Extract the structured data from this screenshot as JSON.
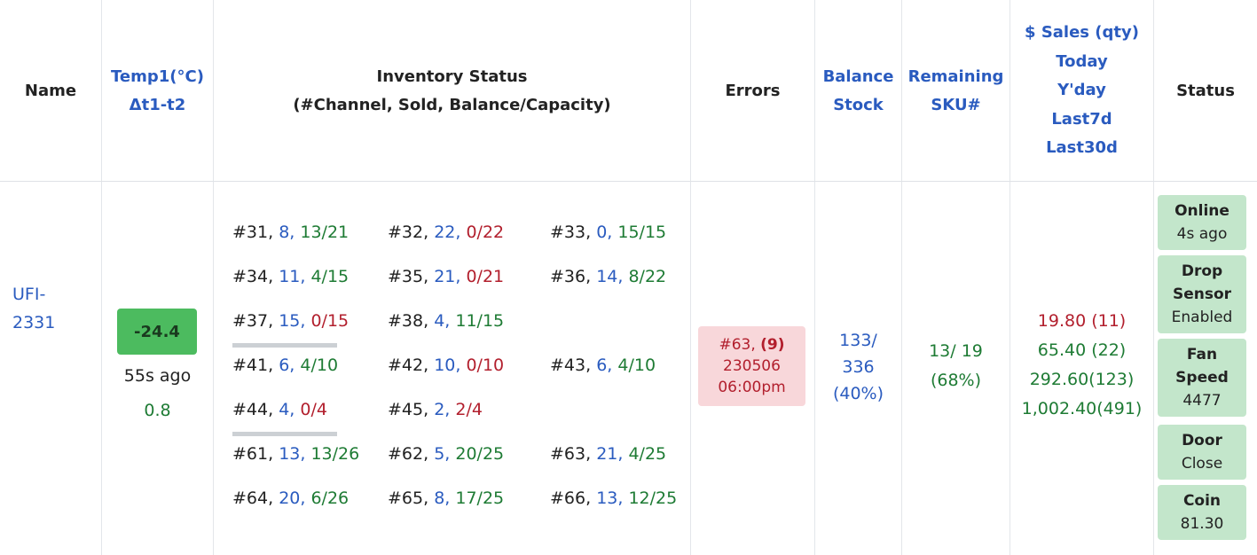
{
  "header": {
    "name": "Name",
    "temp": [
      "Temp1(°C)",
      "Δt1-t2"
    ],
    "inventory": [
      "Inventory Status",
      "(#Channel, Sold, Balance/Capacity)"
    ],
    "errors": "Errors",
    "balance": [
      "Balance",
      "Stock"
    ],
    "remaining": [
      "Remaining",
      "SKU#"
    ],
    "sales": [
      "$ Sales (qty)",
      "Today",
      "Y'day",
      "Last7d",
      "Last30d"
    ],
    "status": "Status"
  },
  "row": {
    "name": "UFI-2331",
    "temp": {
      "value": "-24.4",
      "ago": "55s ago",
      "delta": "0.8"
    },
    "inventory": [
      [
        [
          {
            "channel": "#31,",
            "sold": "8,",
            "balance": "13/21",
            "color": "green"
          },
          {
            "channel": "#32,",
            "sold": "22,",
            "balance": "0/22",
            "color": "red"
          },
          {
            "channel": "#33,",
            "sold": "0,",
            "balance": "15/15",
            "color": "green"
          }
        ],
        [
          {
            "channel": "#34,",
            "sold": "11,",
            "balance": "4/15",
            "color": "green"
          },
          {
            "channel": "#35,",
            "sold": "21,",
            "balance": "0/21",
            "color": "red"
          },
          {
            "channel": "#36,",
            "sold": "14,",
            "balance": "8/22",
            "color": "green"
          }
        ],
        [
          {
            "channel": "#37,",
            "sold": "15,",
            "balance": "0/15",
            "color": "red"
          },
          {
            "channel": "#38,",
            "sold": "4,",
            "balance": "11/15",
            "color": "green"
          }
        ]
      ],
      [
        [
          {
            "channel": "#41,",
            "sold": "6,",
            "balance": "4/10",
            "color": "green"
          },
          {
            "channel": "#42,",
            "sold": "10,",
            "balance": "0/10",
            "color": "red"
          },
          {
            "channel": "#43,",
            "sold": "6,",
            "balance": "4/10",
            "color": "green"
          }
        ],
        [
          {
            "channel": "#44,",
            "sold": "4,",
            "balance": "0/4",
            "color": "red"
          },
          {
            "channel": "#45,",
            "sold": "2,",
            "balance": "2/4",
            "color": "red"
          }
        ]
      ],
      [
        [
          {
            "channel": "#61,",
            "sold": "13,",
            "balance": "13/26",
            "color": "green"
          },
          {
            "channel": "#62,",
            "sold": "5,",
            "balance": "20/25",
            "color": "green"
          },
          {
            "channel": "#63,",
            "sold": "21,",
            "balance": "4/25",
            "color": "green"
          }
        ],
        [
          {
            "channel": "#64,",
            "sold": "20,",
            "balance": "6/26",
            "color": "green"
          },
          {
            "channel": "#65,",
            "sold": "8,",
            "balance": "17/25",
            "color": "green"
          },
          {
            "channel": "#66,",
            "sold": "13,",
            "balance": "12/25",
            "color": "green"
          }
        ]
      ]
    ],
    "errors": {
      "channel": "#63,",
      "count": "(9)",
      "date": "230506",
      "time": "06:00pm"
    },
    "balance": [
      "133/",
      "336",
      "(40%)"
    ],
    "remaining": [
      "13/ 19",
      "(68%)"
    ],
    "sales": [
      {
        "text": "19.80 (11)",
        "color": "red"
      },
      {
        "text": "65.40 (22)",
        "color": "green"
      },
      {
        "text": "292.60(123)",
        "color": "green"
      },
      {
        "text": "1,002.40(491)",
        "color": "green"
      }
    ],
    "status": [
      {
        "title": "Online",
        "detail": "4s ago"
      },
      {
        "title": "Drop Sensor",
        "detail": "Enabled"
      },
      {
        "title": "Fan Speed",
        "detail": "4477"
      },
      {
        "title": "Door",
        "detail": "Close"
      },
      {
        "title": "Coin",
        "detail": "81.30"
      }
    ]
  }
}
